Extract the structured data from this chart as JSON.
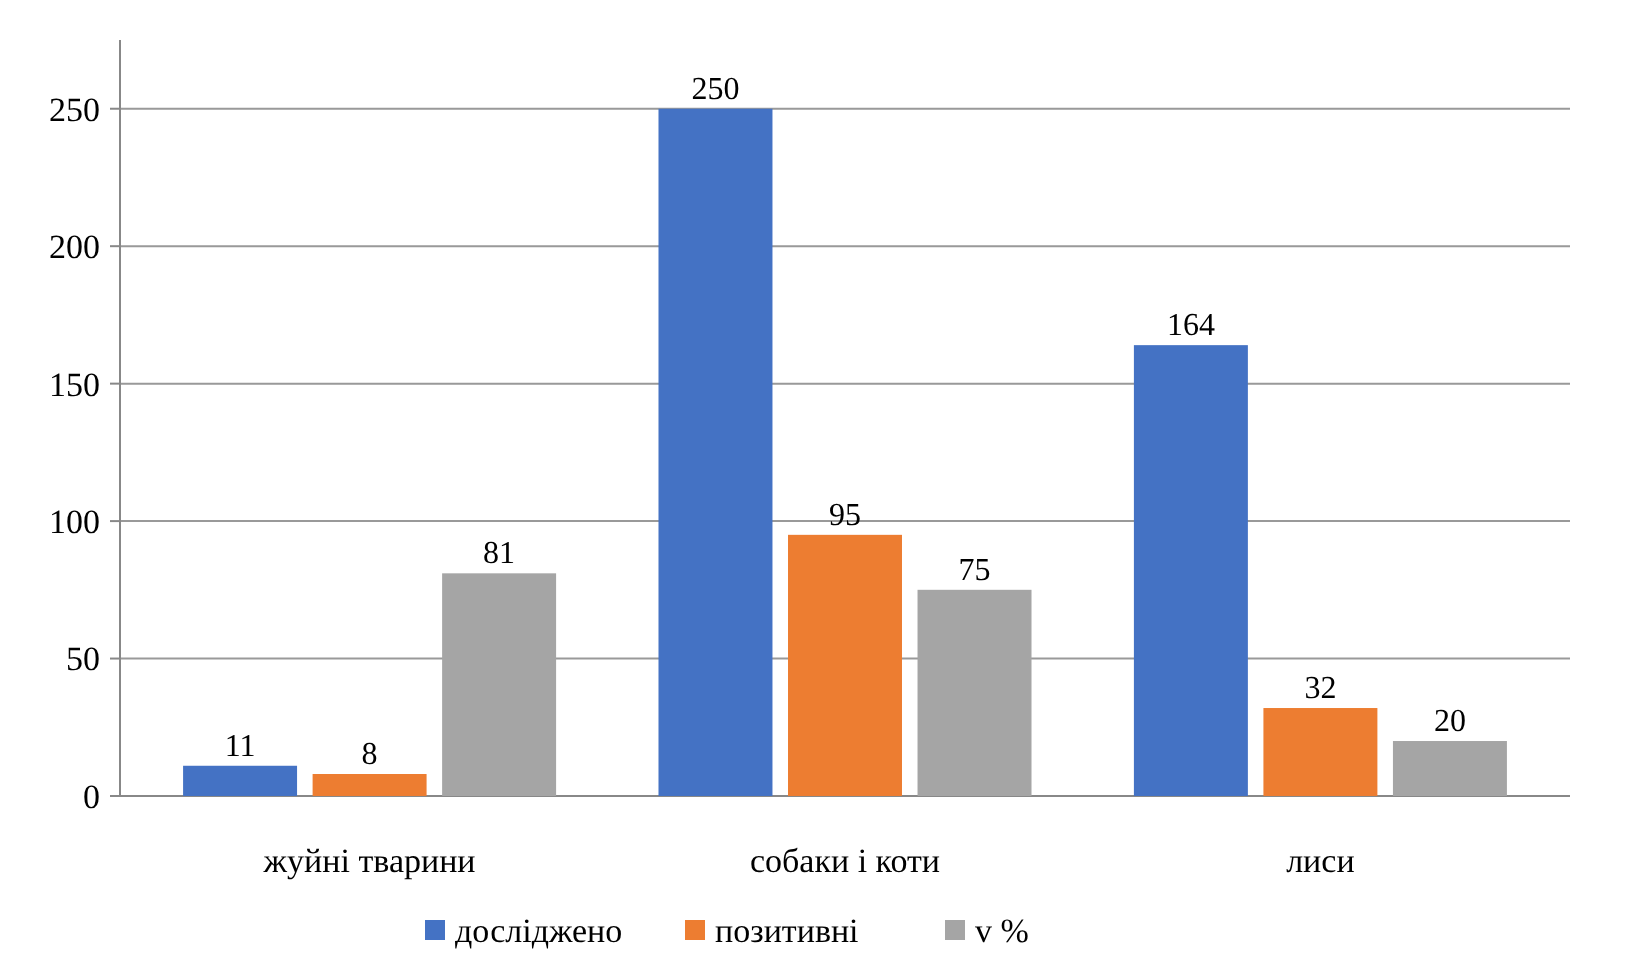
{
  "chart_data": {
    "type": "bar",
    "categories": [
      "жуйні тварини",
      "собаки і коти",
      "лиси"
    ],
    "series": [
      {
        "name": "досліджено",
        "color": "#4472c4",
        "values": [
          11,
          250,
          164
        ]
      },
      {
        "name": "позитивні",
        "color": "#ed7d31",
        "values": [
          8,
          95,
          32
        ]
      },
      {
        "name": "v %",
        "color": "#a5a5a5",
        "values": [
          81,
          75,
          20
        ]
      }
    ],
    "ylim": [
      0,
      275
    ],
    "yticks": [
      0,
      50,
      100,
      150,
      200,
      250
    ],
    "grid": "y",
    "legend": "bottom",
    "data_labels": true
  }
}
